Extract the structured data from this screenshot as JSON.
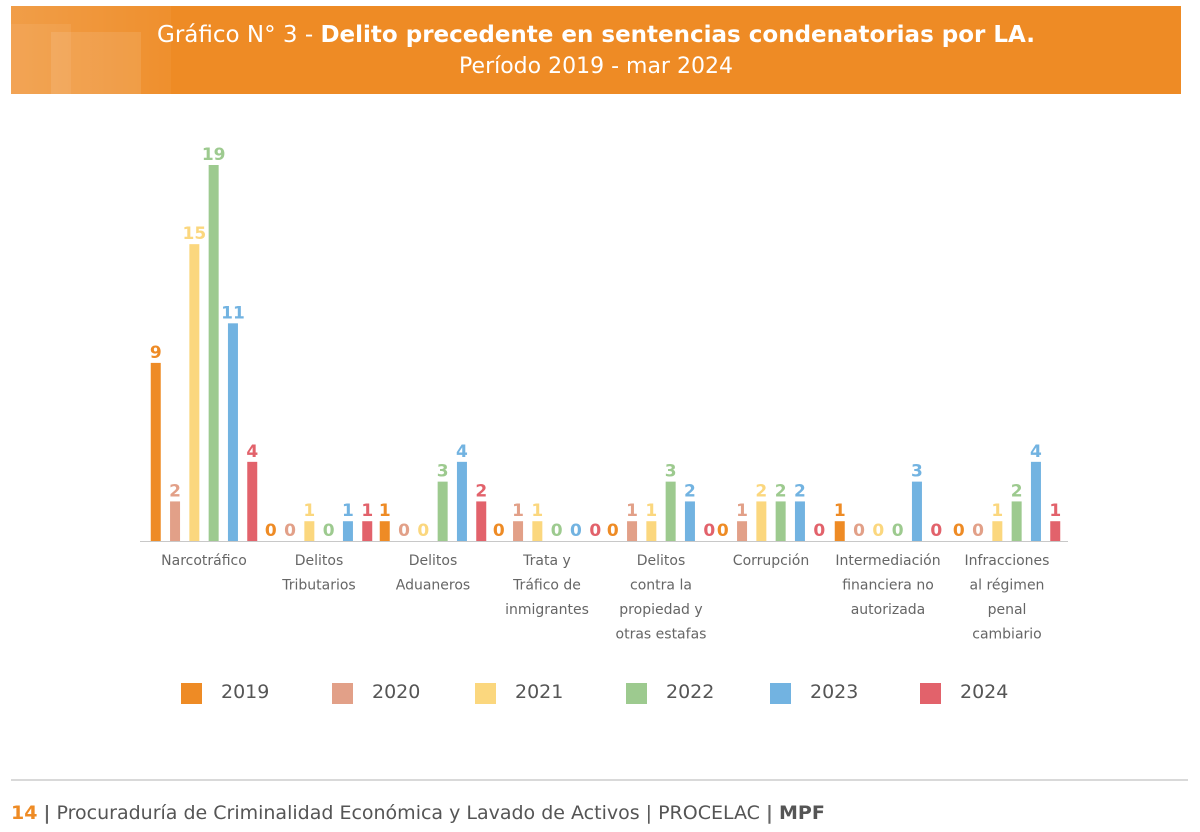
{
  "header": {
    "title_prefix": "Gráfico N° 3 - ",
    "title_bold": "Delito precedente en sentencias condenatorias por LA.",
    "subtitle": "Período 2019 - mar 2024"
  },
  "chart_data": {
    "type": "bar",
    "title": "Gráfico N° 3 - Delito precedente en sentencias condenatorias por LA.",
    "subtitle": "Período 2019 - mar 2024",
    "categories": [
      "Narcotráfico",
      "Delitos Tributarios",
      "Delitos Aduaneros",
      "Trata y Tráfico de inmigrantes",
      "Delitos contra la propiedad y otras estafas",
      "Corrupción",
      "Intermediación financiera no autorizada",
      "Infracciones al régimen penal cambiario"
    ],
    "category_lines": [
      [
        "Narcotráfico"
      ],
      [
        "Delitos",
        "Tributarios"
      ],
      [
        "Delitos",
        "Aduaneros"
      ],
      [
        "Trata y",
        "Tráfico de",
        "inmigrantes"
      ],
      [
        "Delitos",
        "contra la",
        "propiedad y",
        "otras estafas"
      ],
      [
        "Corrupción"
      ],
      [
        "Intermediación",
        "financiera no",
        "autorizada"
      ],
      [
        "Infracciones",
        "al régimen",
        "penal",
        "cambiario"
      ]
    ],
    "series": [
      {
        "name": "2019",
        "color": "#ee8b25",
        "values": [
          9,
          0,
          1,
          0,
          0,
          0,
          1,
          0
        ]
      },
      {
        "name": "2020",
        "color": "#e2a088",
        "values": [
          2,
          0,
          0,
          1,
          1,
          1,
          0,
          0
        ]
      },
      {
        "name": "2021",
        "color": "#fbd77e",
        "values": [
          15,
          1,
          0,
          1,
          1,
          2,
          0,
          1
        ]
      },
      {
        "name": "2022",
        "color": "#9dca8f",
        "values": [
          19,
          0,
          3,
          0,
          3,
          2,
          0,
          2
        ]
      },
      {
        "name": "2023",
        "color": "#72b3e1",
        "values": [
          11,
          1,
          4,
          0,
          2,
          2,
          3,
          4
        ]
      },
      {
        "name": "2024",
        "color": "#e2626b",
        "values": [
          4,
          1,
          2,
          0,
          0,
          0,
          0,
          1
        ]
      }
    ],
    "ylim": [
      0,
      19
    ],
    "grid": false,
    "legend_position": "bottom",
    "data_labels": true
  },
  "footer": {
    "page_number": "14",
    "separator": "|",
    "text": "Procuraduría de Criminalidad Económica y Lavado de Activos | PROCELAC",
    "brand": "MPF"
  }
}
